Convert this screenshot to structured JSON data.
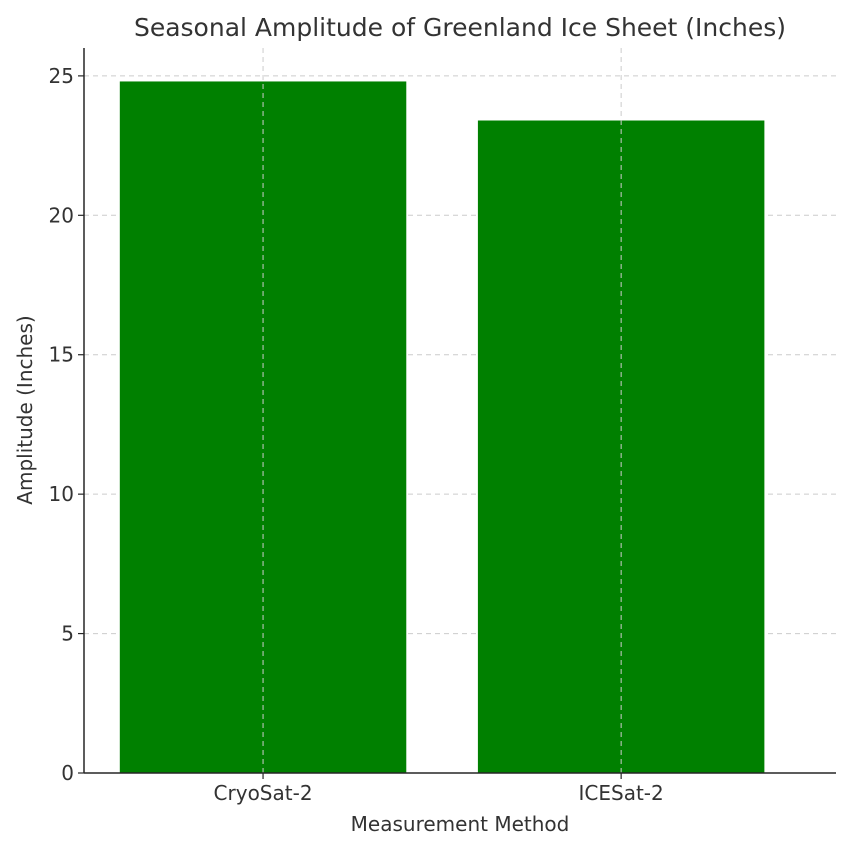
{
  "chart_data": {
    "type": "bar",
    "title": "Seasonal Amplitude of Greenland Ice Sheet (Inches)",
    "xlabel": "Measurement Method",
    "ylabel": "Amplitude (Inches)",
    "categories": [
      "CryoSat-2",
      "ICESat-2"
    ],
    "values": [
      24.8,
      23.4
    ],
    "ylim": [
      0,
      26
    ],
    "yticks": [
      0,
      5,
      10,
      15,
      20,
      25
    ],
    "grid": true,
    "bar_color": "#008000"
  }
}
